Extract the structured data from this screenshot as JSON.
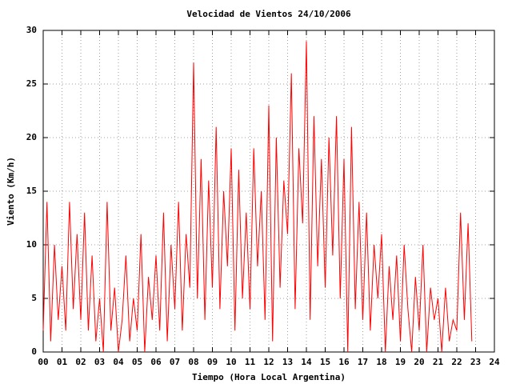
{
  "chart_data": {
    "type": "line",
    "title": "Velocidad de Vientos 24/10/2006",
    "x_label": "Tiempo (Hora Local Argentina)",
    "y_label": "Viento (Km/h)",
    "xlim": [
      0,
      24
    ],
    "ylim": [
      0,
      30
    ],
    "xticks": [
      {
        "value": 0,
        "label": "00"
      },
      {
        "value": 1,
        "label": "01"
      },
      {
        "value": 2,
        "label": "02"
      },
      {
        "value": 3,
        "label": "03"
      },
      {
        "value": 4,
        "label": "04"
      },
      {
        "value": 5,
        "label": "05"
      },
      {
        "value": 6,
        "label": "06"
      },
      {
        "value": 7,
        "label": "07"
      },
      {
        "value": 8,
        "label": "08"
      },
      {
        "value": 9,
        "label": "09"
      },
      10,
      11,
      12,
      13,
      14,
      15,
      16,
      17,
      18,
      19,
      20,
      21,
      22,
      23,
      24
    ],
    "yticks": [
      0,
      5,
      10,
      15,
      20,
      25,
      30
    ],
    "grid": true,
    "x": [
      0,
      0.2,
      0.4,
      0.6,
      0.8,
      1,
      1.2,
      1.4,
      1.6,
      1.8,
      2,
      2.2,
      2.4,
      2.6,
      2.8,
      3,
      3.2,
      3.4,
      3.6,
      3.8,
      4,
      4.2,
      4.4,
      4.6,
      4.8,
      5,
      5.2,
      5.4,
      5.6,
      5.8,
      6,
      6.2,
      6.4,
      6.6,
      6.8,
      7,
      7.2,
      7.4,
      7.6,
      7.8,
      8,
      8.2,
      8.4,
      8.6,
      8.8,
      9,
      9.2,
      9.4,
      9.6,
      9.8,
      10,
      10.2,
      10.4,
      10.6,
      10.8,
      11,
      11.2,
      11.4,
      11.6,
      11.8,
      12,
      12.2,
      12.4,
      12.6,
      12.8,
      13,
      13.2,
      13.4,
      13.6,
      13.8,
      14,
      14.2,
      14.4,
      14.6,
      14.8,
      15,
      15.2,
      15.4,
      15.6,
      15.8,
      16,
      16.2,
      16.4,
      16.6,
      16.8,
      17,
      17.2,
      17.4,
      17.6,
      17.8,
      18,
      18.2,
      18.4,
      18.6,
      18.8,
      19,
      19.2,
      19.4,
      19.6,
      19.8,
      20,
      20.2,
      20.4,
      20.6,
      20.8,
      21,
      21.2,
      21.4,
      21.6,
      21.8,
      22,
      22.2,
      22.4,
      22.6,
      22.8
    ],
    "series": [
      {
        "color": "#ff0000",
        "values": [
          2,
          14,
          1,
          10,
          3,
          8,
          2,
          14,
          4,
          11,
          3,
          13,
          2,
          9,
          1,
          5,
          0,
          14,
          2,
          6,
          0,
          3,
          9,
          1,
          5,
          2,
          11,
          0,
          7,
          3,
          9,
          2,
          13,
          1,
          10,
          4,
          14,
          2,
          11,
          6,
          27,
          5,
          18,
          3,
          16,
          6,
          21,
          4,
          15,
          8,
          19,
          2,
          17,
          5,
          13,
          4,
          19,
          8,
          15,
          3,
          23,
          1,
          20,
          6,
          16,
          11,
          26,
          4,
          19,
          12,
          29,
          3,
          22,
          8,
          18,
          6,
          20,
          9,
          22,
          5,
          18,
          0,
          21,
          4,
          14,
          3,
          13,
          2,
          10,
          5,
          11,
          0,
          8,
          3,
          9,
          1,
          10,
          4,
          0,
          7,
          2,
          10,
          0,
          6,
          3,
          5,
          0,
          6,
          1,
          3,
          2,
          13,
          3,
          12,
          1
        ]
      }
    ]
  }
}
